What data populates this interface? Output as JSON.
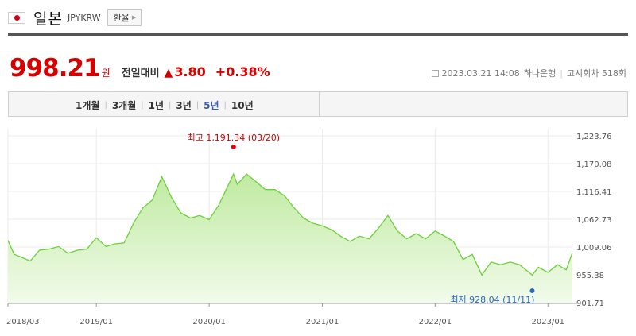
{
  "header": {
    "country": "일본",
    "code": "JPYKRW",
    "exchange_button": "환율"
  },
  "quote": {
    "price": "998.21",
    "unit": "원",
    "compare_label": "전일대비",
    "change": "3.80",
    "change_percent": "+0.38%",
    "datetime": "2023.03.21 14:08",
    "source": "하나은행",
    "notice": "고시회차 518회"
  },
  "period_tabs": [
    {
      "label": "1개월",
      "active": false
    },
    {
      "label": "3개월",
      "active": false
    },
    {
      "label": "1년",
      "active": false
    },
    {
      "label": "3년",
      "active": false
    },
    {
      "label": "5년",
      "active": true
    },
    {
      "label": "10년",
      "active": false
    }
  ],
  "colors": {
    "price_red": "#d60000",
    "line_green": "#6fcf3c",
    "area_top": "#bfeaa0",
    "low_blue": "#2a6acb"
  },
  "chart_data": {
    "type": "area",
    "annotations": {
      "high": {
        "text": "최고 1,191.34 (03/20)",
        "date": "2020-03-20",
        "value": 1191.34
      },
      "low": {
        "text": "최저 928.04 (11/11)",
        "date": "2022-11-11",
        "value": 928.04
      }
    },
    "y_ticks": [
      "1,223.76",
      "1,170.08",
      "1,116.41",
      "1,062.73",
      "1,009.06",
      "955.38",
      "901.71"
    ],
    "y_tick_values": [
      1223.76,
      1170.08,
      1116.41,
      1062.73,
      1009.06,
      955.38,
      901.71
    ],
    "ylim": [
      901.71,
      1223.76
    ],
    "x_ticks": [
      {
        "label": "2018/03",
        "date": "2018-03-21"
      },
      {
        "label": "2019/01",
        "date": "2019-01-01"
      },
      {
        "label": "2020/01",
        "date": "2020-01-01"
      },
      {
        "label": "2021/01",
        "date": "2021-01-01"
      },
      {
        "label": "2022/01",
        "date": "2022-01-01"
      },
      {
        "label": "2023/01",
        "date": "2023-01-01"
      }
    ],
    "x_range": [
      "2018-03-21",
      "2023-03-21"
    ],
    "grid": true,
    "series": [
      {
        "points": [
          [
            "2018-03-21",
            1022
          ],
          [
            "2018-04-10",
            995
          ],
          [
            "2018-05-01",
            990
          ],
          [
            "2018-06-01",
            982
          ],
          [
            "2018-07-01",
            1003
          ],
          [
            "2018-08-01",
            1005
          ],
          [
            "2018-09-01",
            1010
          ],
          [
            "2018-10-01",
            997
          ],
          [
            "2018-11-01",
            1003
          ],
          [
            "2018-12-01",
            1005
          ],
          [
            "2019-01-01",
            1027
          ],
          [
            "2019-02-01",
            1010
          ],
          [
            "2019-03-01",
            1015
          ],
          [
            "2019-04-01",
            1017
          ],
          [
            "2019-05-01",
            1055
          ],
          [
            "2019-06-01",
            1085
          ],
          [
            "2019-07-01",
            1100
          ],
          [
            "2019-08-01",
            1145
          ],
          [
            "2019-09-01",
            1105
          ],
          [
            "2019-10-01",
            1075
          ],
          [
            "2019-11-01",
            1065
          ],
          [
            "2019-12-01",
            1070
          ],
          [
            "2020-01-01",
            1062
          ],
          [
            "2020-02-01",
            1090
          ],
          [
            "2020-03-20",
            1150
          ],
          [
            "2020-04-01",
            1130
          ],
          [
            "2020-05-01",
            1150
          ],
          [
            "2020-06-01",
            1135
          ],
          [
            "2020-07-01",
            1120
          ],
          [
            "2020-08-01",
            1120
          ],
          [
            "2020-09-01",
            1108
          ],
          [
            "2020-10-01",
            1085
          ],
          [
            "2020-11-01",
            1065
          ],
          [
            "2020-12-01",
            1055
          ],
          [
            "2021-01-01",
            1050
          ],
          [
            "2021-02-01",
            1042
          ],
          [
            "2021-03-01",
            1030
          ],
          [
            "2021-04-01",
            1020
          ],
          [
            "2021-05-01",
            1030
          ],
          [
            "2021-06-01",
            1025
          ],
          [
            "2021-07-01",
            1045
          ],
          [
            "2021-08-01",
            1070
          ],
          [
            "2021-09-01",
            1040
          ],
          [
            "2021-10-01",
            1025
          ],
          [
            "2021-11-01",
            1035
          ],
          [
            "2021-12-01",
            1025
          ],
          [
            "2022-01-01",
            1040
          ],
          [
            "2022-02-01",
            1030
          ],
          [
            "2022-03-01",
            1020
          ],
          [
            "2022-04-01",
            985
          ],
          [
            "2022-05-01",
            995
          ],
          [
            "2022-06-01",
            955
          ],
          [
            "2022-07-01",
            980
          ],
          [
            "2022-08-01",
            975
          ],
          [
            "2022-09-01",
            980
          ],
          [
            "2022-10-01",
            975
          ],
          [
            "2022-11-11",
            955
          ],
          [
            "2022-12-01",
            970
          ],
          [
            "2023-01-01",
            960
          ],
          [
            "2023-02-01",
            975
          ],
          [
            "2023-03-01",
            965
          ],
          [
            "2023-03-21",
            998.21
          ]
        ]
      }
    ]
  }
}
